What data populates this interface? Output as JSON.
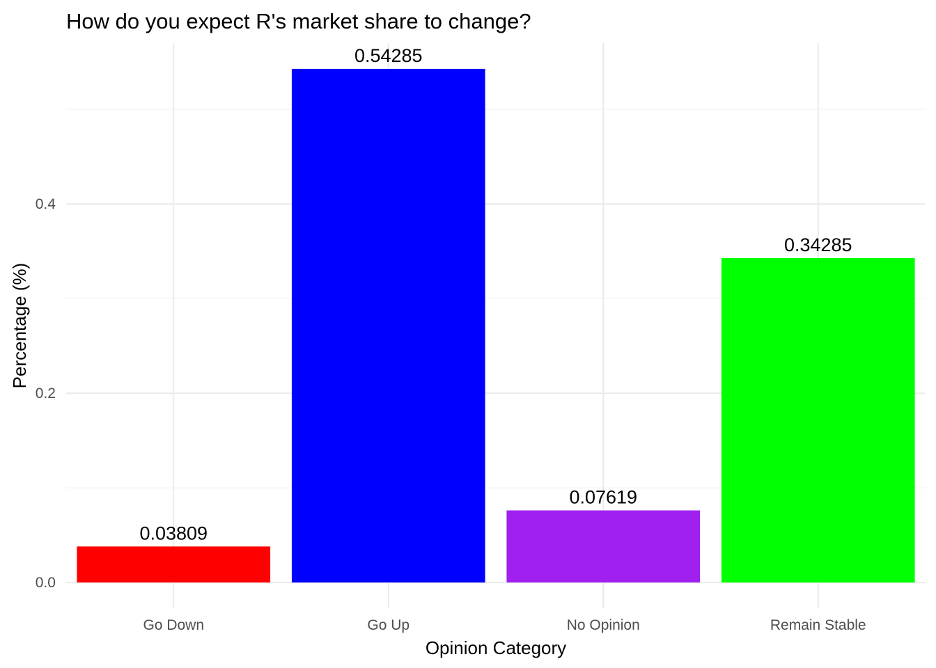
{
  "chart_data": {
    "type": "bar",
    "title": "How do you expect R's market share to change?",
    "xlabel": "Opinion Category",
    "ylabel": "Percentage (%)",
    "categories": [
      "Go Down",
      "Go Up",
      "No Opinion",
      "Remain Stable"
    ],
    "values": [
      0.03809,
      0.54285,
      0.07619,
      0.34285
    ],
    "value_labels": [
      "0.03809",
      "0.54285",
      "0.07619",
      "0.34285"
    ],
    "colors": [
      "#ff0000",
      "#0000ff",
      "#a020f0",
      "#00ff00"
    ],
    "ylim": [
      -0.0271,
      0.57
    ],
    "yticks": [
      0.0,
      0.2,
      0.4
    ],
    "ytick_labels": [
      "0.0",
      "0.2",
      "0.4"
    ],
    "grid": true,
    "legend": "none"
  }
}
